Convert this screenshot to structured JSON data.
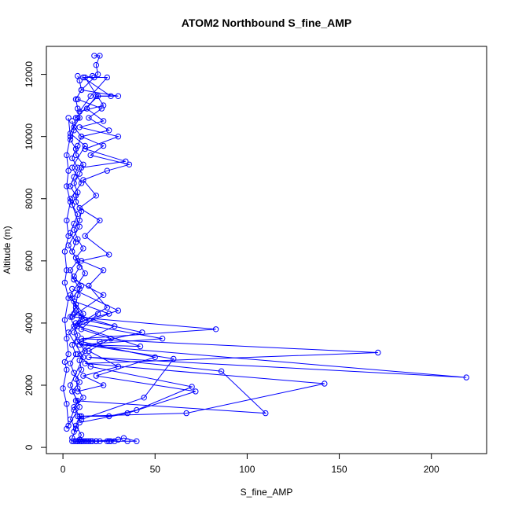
{
  "chart_data": {
    "type": "scatter",
    "title": "ATOM2 Northbound S_fine_AMP",
    "xlabel": "S_fine_AMP",
    "ylabel": "Altitude (m)",
    "xlim": [
      -9,
      230
    ],
    "ylim": [
      -200,
      12900
    ],
    "xticks": [
      0,
      50,
      100,
      150,
      200
    ],
    "yticks": [
      0,
      2000,
      4000,
      6000,
      8000,
      10000,
      12000
    ],
    "grid": false,
    "legend": "none",
    "series": [
      {
        "color": "#0000ff",
        "marker": "open-circle",
        "connect": true,
        "profiles": [
          [
            [
              8,
              200
            ],
            [
              10,
              400
            ],
            [
              7,
              700
            ],
            [
              9,
              1000
            ],
            [
              6,
              1300
            ],
            [
              11,
              1600
            ],
            [
              8,
              1900
            ],
            [
              7,
              2200
            ],
            [
              10,
              2500
            ],
            [
              9,
              2800
            ],
            [
              12,
              3100
            ],
            [
              8,
              3400
            ],
            [
              6,
              3700
            ],
            [
              9,
              4000
            ],
            [
              11,
              4300
            ],
            [
              7,
              4600
            ],
            [
              8,
              4900
            ],
            [
              10,
              5200
            ],
            [
              6,
              5500
            ],
            [
              9,
              5800
            ],
            [
              7,
              6100
            ],
            [
              11,
              6400
            ],
            [
              8,
              6700
            ],
            [
              6,
              7000
            ],
            [
              9,
              7300
            ],
            [
              10,
              7600
            ],
            [
              7,
              7900
            ],
            [
              8,
              8200
            ],
            [
              6,
              8500
            ],
            [
              9,
              8800
            ],
            [
              11,
              9100
            ],
            [
              7,
              9400
            ],
            [
              8,
              9700
            ],
            [
              10,
              10000
            ],
            [
              6,
              10300
            ],
            [
              9,
              10600
            ],
            [
              8,
              10900
            ],
            [
              7,
              11200
            ],
            [
              10,
              11500
            ],
            [
              9,
              11800
            ],
            [
              8,
              11950
            ]
          ],
          [
            [
              5,
              300
            ],
            [
              7,
              600
            ],
            [
              4,
              900
            ],
            [
              6,
              1200
            ],
            [
              8,
              1500
            ],
            [
              5,
              1800
            ],
            [
              9,
              2100
            ],
            [
              6,
              2400
            ],
            [
              4,
              2700
            ],
            [
              7,
              3000
            ],
            [
              5,
              3300
            ],
            [
              8,
              3600
            ],
            [
              6,
              3900
            ],
            [
              4,
              4200
            ],
            [
              7,
              4500
            ],
            [
              5,
              4800
            ],
            [
              9,
              5100
            ],
            [
              6,
              5400
            ],
            [
              4,
              5700
            ],
            [
              8,
              6000
            ],
            [
              5,
              6300
            ],
            [
              7,
              6600
            ],
            [
              4,
              6900
            ],
            [
              6,
              7200
            ],
            [
              8,
              7500
            ],
            [
              5,
              7800
            ],
            [
              7,
              8100
            ],
            [
              4,
              8400
            ],
            [
              6,
              8700
            ],
            [
              8,
              9000
            ],
            [
              5,
              9300
            ],
            [
              7,
              9600
            ],
            [
              4,
              9900
            ],
            [
              6,
              10200
            ],
            [
              5,
              10500
            ]
          ],
          [
            [
              12,
              200
            ],
            [
              25,
              200
            ],
            [
              40,
              200
            ],
            [
              33,
              300
            ],
            [
              26,
              200
            ],
            [
              14,
              200
            ],
            [
              9,
              250
            ],
            [
              20,
              200
            ],
            [
              30,
              250
            ],
            [
              15,
              200
            ],
            [
              10,
              200
            ],
            [
              35,
              200
            ],
            [
              28,
              200
            ],
            [
              18,
              200
            ]
          ],
          [
            [
              6,
              500
            ],
            [
              10,
              1000
            ],
            [
              25,
              1000
            ],
            [
              40,
              1200
            ],
            [
              70,
              1950
            ],
            [
              15,
              2600
            ],
            [
              8,
              3000
            ],
            [
              20,
              3400
            ],
            [
              43,
              3700
            ],
            [
              12,
              4100
            ],
            [
              7,
              4400
            ]
          ],
          [
            [
              9,
              800
            ],
            [
              35,
              1100
            ],
            [
              72,
              1800
            ],
            [
              18,
              2300
            ],
            [
              50,
              2900
            ],
            [
              10,
              3400
            ],
            [
              28,
              3900
            ],
            [
              6,
              4300
            ]
          ],
          [
            [
              8,
              1000
            ],
            [
              67,
              1100
            ],
            [
              142,
              2050
            ],
            [
              12,
              2700
            ],
            [
              171,
              3050
            ],
            [
              10,
              3500
            ],
            [
              83,
              3800
            ],
            [
              5,
              4200
            ],
            [
              22,
              4900
            ],
            [
              6,
              5400
            ]
          ],
          [
            [
              7,
              1500
            ],
            [
              110,
              1100
            ],
            [
              86,
              2450
            ],
            [
              14,
              2900
            ],
            [
              219,
              2250
            ],
            [
              9,
              3300
            ],
            [
              54,
              3500
            ],
            [
              7,
              4000
            ],
            [
              30,
              4400
            ],
            [
              5,
              5100
            ]
          ],
          [
            [
              10,
              900
            ],
            [
              44,
              1600
            ],
            [
              60,
              2850
            ],
            [
              12,
              3300
            ],
            [
              42,
              3250
            ],
            [
              8,
              3900
            ],
            [
              25,
              4300
            ],
            [
              6,
              4700
            ]
          ],
          [
            [
              3,
              700
            ],
            [
              2,
              1400
            ],
            [
              0,
              1900
            ],
            [
              2,
              2500
            ],
            [
              1,
              2750
            ],
            [
              3,
              3000
            ],
            [
              2,
              3500
            ],
            [
              1,
              4100
            ],
            [
              3,
              4800
            ],
            [
              1,
              5300
            ],
            [
              2,
              5700
            ],
            [
              1,
              6300
            ],
            [
              3,
              6800
            ],
            [
              2,
              7300
            ],
            [
              4,
              7900
            ],
            [
              2,
              8400
            ],
            [
              3,
              8900
            ],
            [
              2,
              9400
            ],
            [
              4,
              10000
            ],
            [
              3,
              10600
            ]
          ],
          [
            [
              9,
              4000
            ],
            [
              24,
              4500
            ],
            [
              14,
              5200
            ],
            [
              22,
              5700
            ],
            [
              10,
              6000
            ],
            [
              25,
              6200
            ],
            [
              12,
              6800
            ],
            [
              20,
              7300
            ],
            [
              9,
              7700
            ],
            [
              18,
              8100
            ],
            [
              11,
              8600
            ],
            [
              24,
              8900
            ],
            [
              36,
              9100
            ],
            [
              15,
              9400
            ],
            [
              22,
              9700
            ],
            [
              10,
              10000
            ],
            [
              25,
              10200
            ],
            [
              14,
              10600
            ],
            [
              21,
              10900
            ],
            [
              8,
              11200
            ]
          ],
          [
            [
              10,
              9000
            ],
            [
              34,
              9200
            ],
            [
              12,
              9600
            ],
            [
              30,
              10000
            ],
            [
              9,
              10300
            ],
            [
              22,
              10500
            ],
            [
              13,
              10900
            ],
            [
              18,
              11300
            ],
            [
              30,
              11300
            ],
            [
              10,
              11500
            ],
            [
              17,
              11900
            ],
            [
              19,
              12000
            ],
            [
              18,
              12300
            ],
            [
              20,
              12600
            ],
            [
              17,
              12600
            ]
          ],
          [
            [
              7,
              10600
            ],
            [
              19,
              11300
            ],
            [
              26,
              11300
            ],
            [
              11,
              11900
            ],
            [
              24,
              11900
            ],
            [
              15,
              11300
            ],
            [
              9,
              10800
            ],
            [
              22,
              11000
            ],
            [
              12,
              11900
            ],
            [
              16,
              11950
            ]
          ],
          [
            [
              2,
              600
            ],
            [
              9,
              1300
            ],
            [
              4,
              2000
            ],
            [
              11,
              2900
            ],
            [
              3,
              3700
            ],
            [
              10,
              4200
            ],
            [
              4,
              4900
            ],
            [
              12,
              5600
            ],
            [
              3,
              6500
            ],
            [
              9,
              7100
            ],
            [
              4,
              8000
            ],
            [
              10,
              8500
            ],
            [
              5,
              9000
            ],
            [
              12,
              9700
            ],
            [
              4,
              10100
            ],
            [
              8,
              10600
            ]
          ],
          [
            [
              8,
              1800
            ],
            [
              22,
              2000
            ],
            [
              11,
              2300
            ],
            [
              30,
              2600
            ],
            [
              14,
              3100
            ],
            [
              26,
              3500
            ],
            [
              10,
              3800
            ],
            [
              19,
              4300
            ]
          ],
          [
            [
              6,
              200
            ],
            [
              9,
              200
            ],
            [
              7,
              200
            ],
            [
              11,
              200
            ],
            [
              5,
              200
            ],
            [
              16,
              200
            ],
            [
              10,
              200
            ],
            [
              13,
              200
            ],
            [
              8,
              200
            ],
            [
              24,
              200
            ],
            [
              18,
              200
            ]
          ]
        ]
      }
    ]
  }
}
